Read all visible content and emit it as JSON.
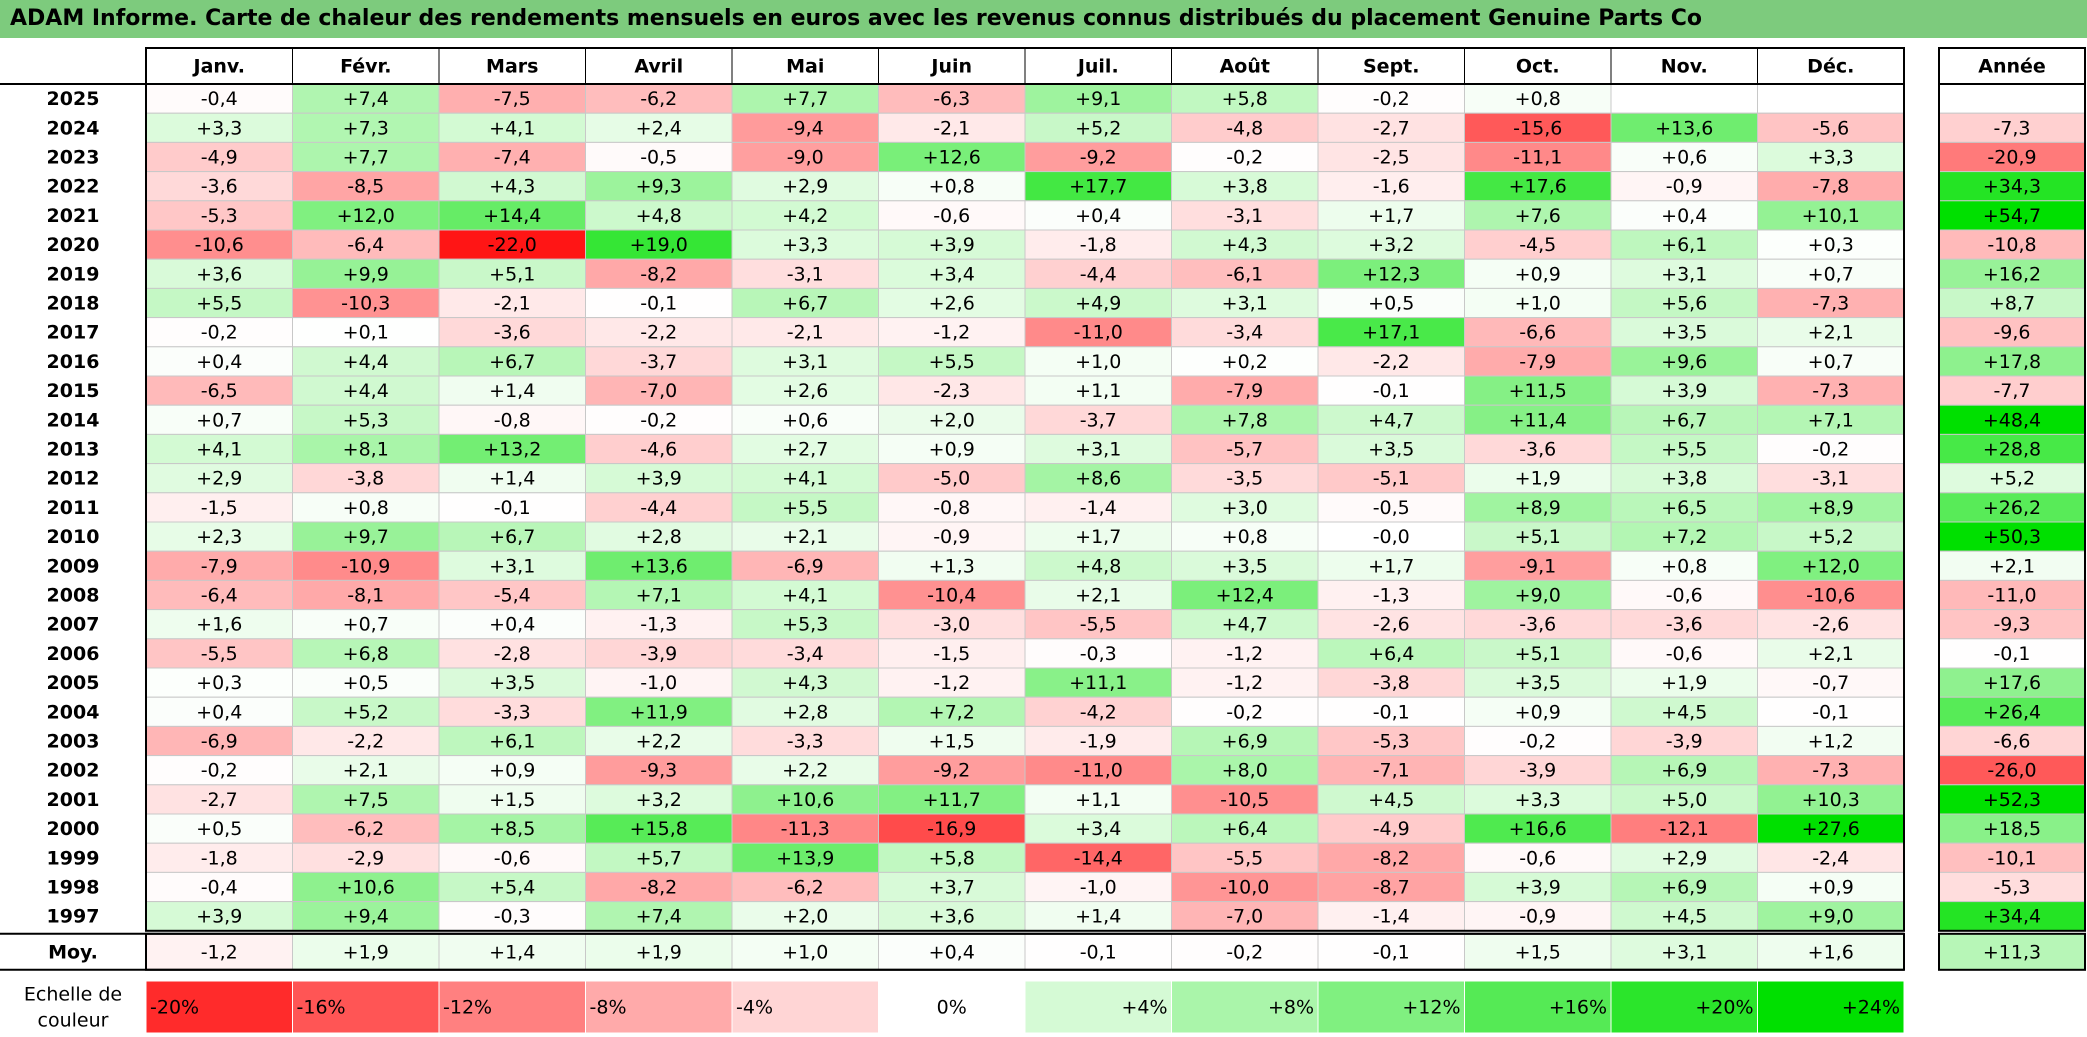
{
  "title": "ADAM Informe. Carte de chaleur des rendements mensuels en euros avec les revenus connus distribués du placement Genuine Parts Co",
  "months": [
    "Janv.",
    "Févr.",
    "Mars",
    "Avril",
    "Mai",
    "Juin",
    "Juil.",
    "Août",
    "Sept.",
    "Oct.",
    "Nov.",
    "Déc."
  ],
  "annual_label": "Année",
  "avg_label": "Moy.",
  "scale_label": "Echelle de couleur",
  "scale": [
    "-20%",
    "-16%",
    "-12%",
    "-8%",
    "-4%",
    "0%",
    "+4%",
    "+8%",
    "+12%",
    "+16%",
    "+20%",
    "+24%"
  ],
  "colors": {
    "title_bg": "#7dcb7d",
    "negative": "#ff0000",
    "positive": "#00e000",
    "neutral": "#ffffff"
  },
  "chart_data": {
    "type": "heatmap",
    "x": [
      "Janv.",
      "Févr.",
      "Mars",
      "Avril",
      "Mai",
      "Juin",
      "Juil.",
      "Août",
      "Sept.",
      "Oct.",
      "Nov.",
      "Déc."
    ],
    "rows": [
      {
        "year": "2025",
        "values": [
          "-0,4",
          "+7,4",
          "-7,5",
          "-6,2",
          "+7,7",
          "-6,3",
          "+9,1",
          "+5,8",
          "-0,2",
          "+0,8",
          "",
          ""
        ],
        "annual": ""
      },
      {
        "year": "2024",
        "values": [
          "+3,3",
          "+7,3",
          "+4,1",
          "+2,4",
          "-9,4",
          "-2,1",
          "+5,2",
          "-4,8",
          "-2,7",
          "-15,6",
          "+13,6",
          "-5,6"
        ],
        "annual": "-7,3"
      },
      {
        "year": "2023",
        "values": [
          "-4,9",
          "+7,7",
          "-7,4",
          "-0,5",
          "-9,0",
          "+12,6",
          "-9,2",
          "-0,2",
          "-2,5",
          "-11,1",
          "+0,6",
          "+3,3"
        ],
        "annual": "-20,9"
      },
      {
        "year": "2022",
        "values": [
          "-3,6",
          "-8,5",
          "+4,3",
          "+9,3",
          "+2,9",
          "+0,8",
          "+17,7",
          "+3,8",
          "-1,6",
          "+17,6",
          "-0,9",
          "-7,8"
        ],
        "annual": "+34,3"
      },
      {
        "year": "2021",
        "values": [
          "-5,3",
          "+12,0",
          "+14,4",
          "+4,8",
          "+4,2",
          "-0,6",
          "+0,4",
          "-3,1",
          "+1,7",
          "+7,6",
          "+0,4",
          "+10,1"
        ],
        "annual": "+54,7"
      },
      {
        "year": "2020",
        "values": [
          "-10,6",
          "-6,4",
          "-22,0",
          "+19,0",
          "+3,3",
          "+3,9",
          "-1,8",
          "+4,3",
          "+3,2",
          "-4,5",
          "+6,1",
          "+0,3"
        ],
        "annual": "-10,8"
      },
      {
        "year": "2019",
        "values": [
          "+3,6",
          "+9,9",
          "+5,1",
          "-8,2",
          "-3,1",
          "+3,4",
          "-4,4",
          "-6,1",
          "+12,3",
          "+0,9",
          "+3,1",
          "+0,7"
        ],
        "annual": "+16,2"
      },
      {
        "year": "2018",
        "values": [
          "+5,5",
          "-10,3",
          "-2,1",
          "-0,1",
          "+6,7",
          "+2,6",
          "+4,9",
          "+3,1",
          "+0,5",
          "+1,0",
          "+5,6",
          "-7,3"
        ],
        "annual": "+8,7"
      },
      {
        "year": "2017",
        "values": [
          "-0,2",
          "+0,1",
          "-3,6",
          "-2,2",
          "-2,1",
          "-1,2",
          "-11,0",
          "-3,4",
          "+17,1",
          "-6,6",
          "+3,5",
          "+2,1"
        ],
        "annual": "-9,6"
      },
      {
        "year": "2016",
        "values": [
          "+0,4",
          "+4,4",
          "+6,7",
          "-3,7",
          "+3,1",
          "+5,5",
          "+1,0",
          "+0,2",
          "-2,2",
          "-7,9",
          "+9,6",
          "+0,7"
        ],
        "annual": "+17,8"
      },
      {
        "year": "2015",
        "values": [
          "-6,5",
          "+4,4",
          "+1,4",
          "-7,0",
          "+2,6",
          "-2,3",
          "+1,1",
          "-7,9",
          "-0,1",
          "+11,5",
          "+3,9",
          "-7,3"
        ],
        "annual": "-7,7"
      },
      {
        "year": "2014",
        "values": [
          "+0,7",
          "+5,3",
          "-0,8",
          "-0,2",
          "+0,6",
          "+2,0",
          "-3,7",
          "+7,8",
          "+4,7",
          "+11,4",
          "+6,7",
          "+7,1"
        ],
        "annual": "+48,4"
      },
      {
        "year": "2013",
        "values": [
          "+4,1",
          "+8,1",
          "+13,2",
          "-4,6",
          "+2,7",
          "+0,9",
          "+3,1",
          "-5,7",
          "+3,5",
          "-3,6",
          "+5,5",
          "-0,2"
        ],
        "annual": "+28,8"
      },
      {
        "year": "2012",
        "values": [
          "+2,9",
          "-3,8",
          "+1,4",
          "+3,9",
          "+4,1",
          "-5,0",
          "+8,6",
          "-3,5",
          "-5,1",
          "+1,9",
          "+3,8",
          "-3,1"
        ],
        "annual": "+5,2"
      },
      {
        "year": "2011",
        "values": [
          "-1,5",
          "+0,8",
          "-0,1",
          "-4,4",
          "+5,5",
          "-0,8",
          "-1,4",
          "+3,0",
          "-0,5",
          "+8,9",
          "+6,5",
          "+8,9"
        ],
        "annual": "+26,2"
      },
      {
        "year": "2010",
        "values": [
          "+2,3",
          "+9,7",
          "+6,7",
          "+2,8",
          "+2,1",
          "-0,9",
          "+1,7",
          "+0,8",
          "-0,0",
          "+5,1",
          "+7,2",
          "+5,2"
        ],
        "annual": "+50,3"
      },
      {
        "year": "2009",
        "values": [
          "-7,9",
          "-10,9",
          "+3,1",
          "+13,6",
          "-6,9",
          "+1,3",
          "+4,8",
          "+3,5",
          "+1,7",
          "-9,1",
          "+0,8",
          "+12,0"
        ],
        "annual": "+2,1"
      },
      {
        "year": "2008",
        "values": [
          "-6,4",
          "-8,1",
          "-5,4",
          "+7,1",
          "+4,1",
          "-10,4",
          "+2,1",
          "+12,4",
          "-1,3",
          "+9,0",
          "-0,6",
          "-10,6"
        ],
        "annual": "-11,0"
      },
      {
        "year": "2007",
        "values": [
          "+1,6",
          "+0,7",
          "+0,4",
          "-1,3",
          "+5,3",
          "-3,0",
          "-5,5",
          "+4,7",
          "-2,6",
          "-3,6",
          "-3,6",
          "-2,6"
        ],
        "annual": "-9,3"
      },
      {
        "year": "2006",
        "values": [
          "-5,5",
          "+6,8",
          "-2,8",
          "-3,9",
          "-3,4",
          "-1,5",
          "-0,3",
          "-1,2",
          "+6,4",
          "+5,1",
          "-0,6",
          "+2,1"
        ],
        "annual": "-0,1"
      },
      {
        "year": "2005",
        "values": [
          "+0,3",
          "+0,5",
          "+3,5",
          "-1,0",
          "+4,3",
          "-1,2",
          "+11,1",
          "-1,2",
          "-3,8",
          "+3,5",
          "+1,9",
          "-0,7"
        ],
        "annual": "+17,6"
      },
      {
        "year": "2004",
        "values": [
          "+0,4",
          "+5,2",
          "-3,3",
          "+11,9",
          "+2,8",
          "+7,2",
          "-4,2",
          "-0,2",
          "-0,1",
          "+0,9",
          "+4,5",
          "-0,1"
        ],
        "annual": "+26,4"
      },
      {
        "year": "2003",
        "values": [
          "-6,9",
          "-2,2",
          "+6,1",
          "+2,2",
          "-3,3",
          "+1,5",
          "-1,9",
          "+6,9",
          "-5,3",
          "-0,2",
          "-3,9",
          "+1,2"
        ],
        "annual": "-6,6"
      },
      {
        "year": "2002",
        "values": [
          "-0,2",
          "+2,1",
          "+0,9",
          "-9,3",
          "+2,2",
          "-9,2",
          "-11,0",
          "+8,0",
          "-7,1",
          "-3,9",
          "+6,9",
          "-7,3"
        ],
        "annual": "-26,0"
      },
      {
        "year": "2001",
        "values": [
          "-2,7",
          "+7,5",
          "+1,5",
          "+3,2",
          "+10,6",
          "+11,7",
          "+1,1",
          "-10,5",
          "+4,5",
          "+3,3",
          "+5,0",
          "+10,3"
        ],
        "annual": "+52,3"
      },
      {
        "year": "2000",
        "values": [
          "+0,5",
          "-6,2",
          "+8,5",
          "+15,8",
          "-11,3",
          "-16,9",
          "+3,4",
          "+6,4",
          "-4,9",
          "+16,6",
          "-12,1",
          "+27,6"
        ],
        "annual": "+18,5"
      },
      {
        "year": "1999",
        "values": [
          "-1,8",
          "-2,9",
          "-0,6",
          "+5,7",
          "+13,9",
          "+5,8",
          "-14,4",
          "-5,5",
          "-8,2",
          "-0,6",
          "+2,9",
          "-2,4"
        ],
        "annual": "-10,1"
      },
      {
        "year": "1998",
        "values": [
          "-0,4",
          "+10,6",
          "+5,4",
          "-8,2",
          "-6,2",
          "+3,7",
          "-1,0",
          "-10,0",
          "-8,7",
          "+3,9",
          "+6,9",
          "+0,9"
        ],
        "annual": "-5,3"
      },
      {
        "year": "1997",
        "values": [
          "+3,9",
          "+9,4",
          "-0,3",
          "+7,4",
          "+2,0",
          "+3,6",
          "+1,4",
          "-7,0",
          "-1,4",
          "-0,9",
          "+4,5",
          "+9,0"
        ],
        "annual": "+34,4"
      }
    ],
    "average": {
      "values": [
        "-1,2",
        "+1,9",
        "+1,4",
        "+1,9",
        "+1,0",
        "+0,4",
        "-0,1",
        "-0,2",
        "-0,1",
        "+1,5",
        "+3,1",
        "+1,6"
      ],
      "annual": "+11,3"
    }
  }
}
